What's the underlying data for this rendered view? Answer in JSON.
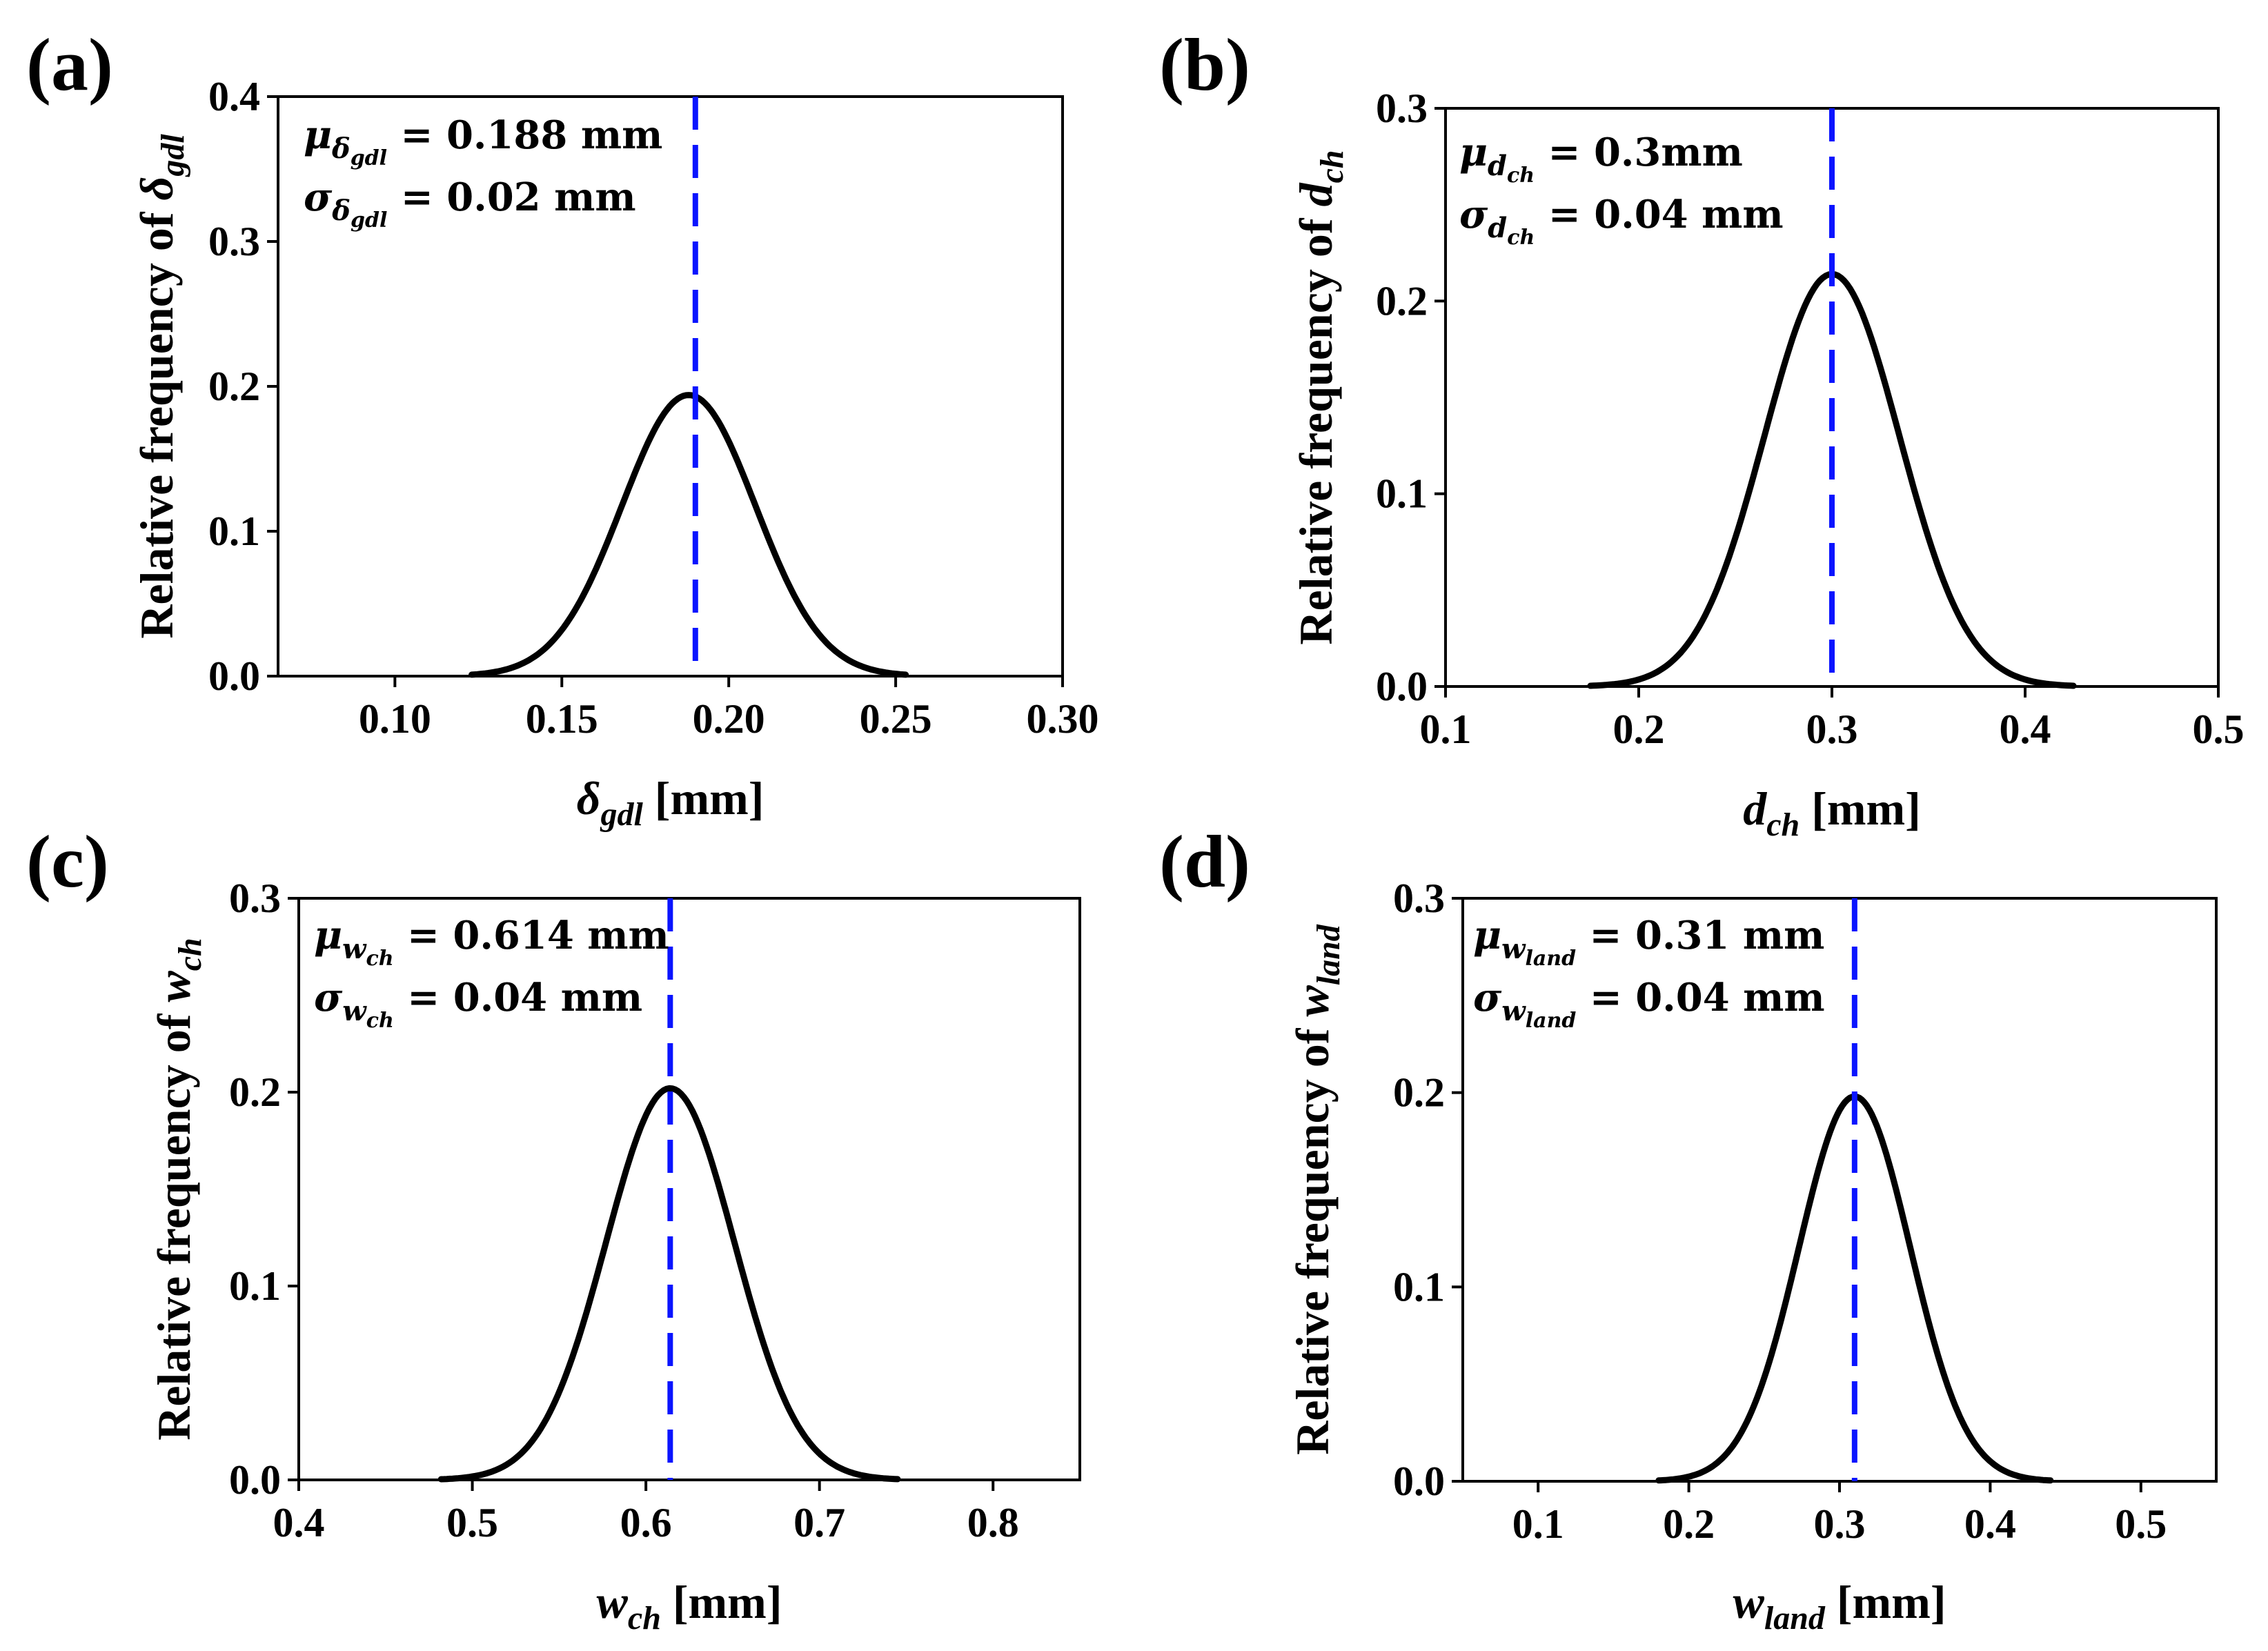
{
  "chart_data": [
    {
      "type": "line",
      "panel": "(a)",
      "ylabel_prefix": "Relative frequency of ",
      "ylabel_sym": "δ",
      "ylabel_sub": "gdl",
      "xlabel_sym": "δ",
      "xlabel_sub": "gdl",
      "xlabel_unit": " [mm]",
      "xlim": [
        0.065,
        0.3
      ],
      "ylim": [
        0.0,
        0.4
      ],
      "xticks": [
        0.1,
        0.15,
        0.2,
        0.25,
        0.3
      ],
      "xtick_labels": [
        "0.10",
        "0.15",
        "0.20",
        "0.25",
        "0.30"
      ],
      "yticks": [
        0.0,
        0.1,
        0.2,
        0.3,
        0.4
      ],
      "ytick_labels": [
        "0.0",
        "0.1",
        "0.2",
        "0.3",
        "0.4"
      ],
      "series": [
        {
          "name": "distribution",
          "kind": "gaussian",
          "center": 0.188,
          "peak": 0.194,
          "sigma": 0.02,
          "range": [
            0.123,
            0.253
          ],
          "color": "#000000"
        }
      ],
      "mean_line": {
        "x": 0.19,
        "color": "#0a14ff"
      },
      "annotations": [
        {
          "greek": "μ",
          "sub": "δ",
          "subsub": "gdl",
          "text": " = 0.188 mm"
        },
        {
          "greek": "σ",
          "sub": "δ",
          "subsub": "gdl",
          "text": " = 0.02 mm"
        }
      ]
    },
    {
      "type": "line",
      "panel": "(b)",
      "ylabel_prefix": "Relative frequency of ",
      "ylabel_sym": "d",
      "ylabel_sub": "ch",
      "xlabel_sym": "d",
      "xlabel_sub": "ch",
      "xlabel_unit": " [mm]",
      "xlim": [
        0.1,
        0.5
      ],
      "ylim": [
        0.0,
        0.3
      ],
      "xticks": [
        0.1,
        0.2,
        0.3,
        0.4,
        0.5
      ],
      "xtick_labels": [
        "0.1",
        "0.2",
        "0.3",
        "0.4",
        "0.5"
      ],
      "yticks": [
        0.0,
        0.1,
        0.2,
        0.3
      ],
      "ytick_labels": [
        "0.0",
        "0.1",
        "0.2",
        "0.3"
      ],
      "series": [
        {
          "name": "distribution",
          "kind": "gaussian",
          "center": 0.3,
          "peak": 0.214,
          "sigma": 0.035,
          "range": [
            0.175,
            0.425
          ],
          "color": "#000000"
        }
      ],
      "mean_line": {
        "x": 0.3,
        "color": "#0a14ff"
      },
      "annotations": [
        {
          "greek": "μ",
          "sub": "d",
          "subsub": "ch",
          "text": " = 0.3mm"
        },
        {
          "greek": "σ",
          "sub": "d",
          "subsub": "ch",
          "text": " = 0.04 mm"
        }
      ]
    },
    {
      "type": "line",
      "panel": "(c)",
      "ylabel_prefix": "Relative frequency of ",
      "ylabel_sym": "w",
      "ylabel_sub": "ch",
      "xlabel_sym": "w",
      "xlabel_sub": "ch",
      "xlabel_unit": " [mm]",
      "xlim": [
        0.4,
        0.85
      ],
      "ylim": [
        0.0,
        0.3
      ],
      "xticks": [
        0.4,
        0.5,
        0.6,
        0.7,
        0.8
      ],
      "xtick_labels": [
        "0.4",
        "0.5",
        "0.6",
        "0.7",
        "0.8"
      ],
      "yticks": [
        0.0,
        0.1,
        0.2,
        0.3
      ],
      "ytick_labels": [
        "0.0",
        "0.1",
        "0.2",
        "0.3"
      ],
      "series": [
        {
          "name": "distribution",
          "kind": "gaussian",
          "center": 0.614,
          "peak": 0.202,
          "sigma": 0.037,
          "range": [
            0.482,
            0.745
          ],
          "color": "#000000"
        }
      ],
      "mean_line": {
        "x": 0.614,
        "color": "#0a14ff"
      },
      "annotations": [
        {
          "greek": "μ",
          "sub": "w",
          "subsub": "ch",
          "text": " = 0.614 mm"
        },
        {
          "greek": "σ",
          "sub": "w",
          "subsub": "ch",
          "text": " = 0.04 mm"
        }
      ]
    },
    {
      "type": "line",
      "panel": "(d)",
      "ylabel_prefix": "Relative frequency of ",
      "ylabel_sym": "w",
      "ylabel_sub": "land",
      "xlabel_sym": "w",
      "xlabel_sub": "land",
      "xlabel_unit": " [mm]",
      "xlim": [
        0.05,
        0.55
      ],
      "ylim": [
        0.0,
        0.3
      ],
      "xticks": [
        0.1,
        0.2,
        0.3,
        0.4,
        0.5
      ],
      "xtick_labels": [
        "0.1",
        "0.2",
        "0.3",
        "0.4",
        "0.5"
      ],
      "yticks": [
        0.0,
        0.1,
        0.2,
        0.3
      ],
      "ytick_labels": [
        "0.0",
        "0.1",
        "0.2",
        "0.3"
      ],
      "series": [
        {
          "name": "distribution",
          "kind": "gaussian",
          "center": 0.31,
          "peak": 0.198,
          "sigma": 0.037,
          "range": [
            0.18,
            0.44
          ],
          "color": "#000000"
        }
      ],
      "mean_line": {
        "x": 0.31,
        "color": "#0a14ff"
      },
      "annotations": [
        {
          "greek": "μ",
          "sub": "w",
          "subsub": "land",
          "text": " = 0.31 mm"
        },
        {
          "greek": "σ",
          "sub": "w",
          "subsub": "land",
          "text": " = 0.04 mm"
        }
      ]
    }
  ]
}
